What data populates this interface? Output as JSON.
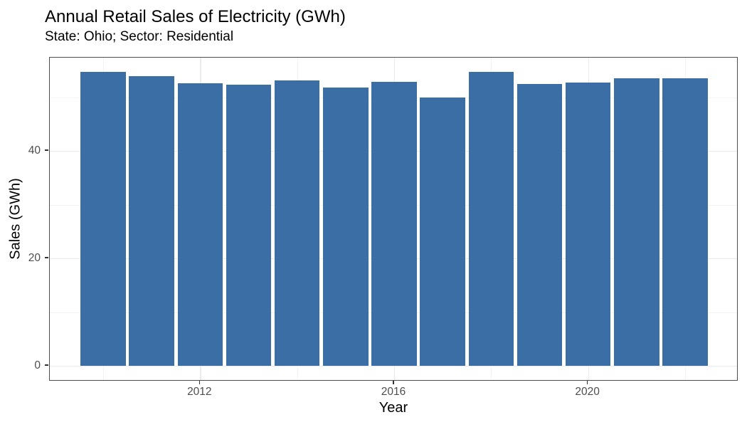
{
  "header": {
    "title": "Annual Retail Sales of Electricity (GWh)",
    "subtitle": "State: Ohio; Sector: Residential"
  },
  "chart_data": {
    "type": "bar",
    "title": "Annual Retail Sales of Electricity (GWh)",
    "subtitle": "State: Ohio; Sector: Residential",
    "xlabel": "Year",
    "ylabel": "Sales (GWh)",
    "x": [
      2010,
      2011,
      2012,
      2013,
      2014,
      2015,
      2016,
      2017,
      2018,
      2019,
      2020,
      2021,
      2022
    ],
    "values": [
      54.8,
      54.0,
      52.6,
      52.3,
      53.1,
      51.8,
      52.9,
      50.0,
      54.7,
      52.5,
      52.8,
      53.5,
      53.6
    ],
    "x_ticks": [
      2012,
      2016,
      2020
    ],
    "y_ticks": [
      0,
      20,
      40
    ],
    "x_minor_gridlines": [
      2010,
      2014,
      2018,
      2022
    ],
    "y_minor_gridlines": [
      10,
      30,
      50
    ],
    "xlim": [
      2008.9,
      2023.1
    ],
    "ylim": [
      -2.9,
      57.4
    ],
    "bar_width_units": 0.93,
    "bar_color": "#3a6ea5",
    "grid": true,
    "legend": false,
    "gridline_major_color": "#ebebeb",
    "gridline_minor_color": "#f3f3f3",
    "panel_border_color": "#4e4e4e",
    "tick_label_color": "#4d4d4d",
    "text_color": "#000000"
  }
}
